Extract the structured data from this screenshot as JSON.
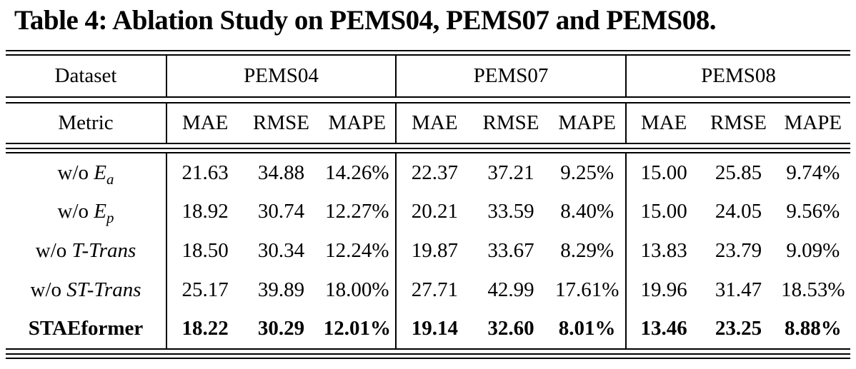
{
  "title": "Table 4: Ablation Study on PEMS04, PEMS07 and PEMS08.",
  "table": {
    "header": {
      "dataset_label": "Dataset",
      "metric_label": "Metric",
      "datasets": [
        "PEMS04",
        "PEMS07",
        "PEMS08"
      ],
      "metrics": [
        "MAE",
        "RMSE",
        "MAPE"
      ]
    },
    "rows": [
      {
        "label": {
          "prefix": "w/o ",
          "main": "E",
          "sub": "a"
        },
        "values": [
          "21.63",
          "34.88",
          "14.26%",
          "22.37",
          "37.21",
          "9.25%",
          "15.00",
          "25.85",
          "9.74%"
        ]
      },
      {
        "label": {
          "prefix": "w/o ",
          "main": "E",
          "sub": "p"
        },
        "values": [
          "18.92",
          "30.74",
          "12.27%",
          "20.21",
          "33.59",
          "8.40%",
          "15.00",
          "24.05",
          "9.56%"
        ]
      },
      {
        "label": {
          "prefix": "w/o ",
          "main": "T-Trans",
          "sub": ""
        },
        "values": [
          "18.50",
          "30.34",
          "12.24%",
          "19.87",
          "33.67",
          "8.29%",
          "13.83",
          "23.79",
          "9.09%"
        ]
      },
      {
        "label": {
          "prefix": "w/o ",
          "main": "ST-Trans",
          "sub": ""
        },
        "values": [
          "25.17",
          "39.89",
          "18.00%",
          "27.71",
          "42.99",
          "17.61%",
          "19.96",
          "31.47",
          "18.53%"
        ]
      },
      {
        "label": {
          "prefix": "",
          "main": "STAEformer",
          "sub": ""
        },
        "values": [
          "18.22",
          "30.29",
          "12.01%",
          "19.14",
          "32.60",
          "8.01%",
          "13.46",
          "23.25",
          "8.88%"
        ]
      }
    ]
  }
}
